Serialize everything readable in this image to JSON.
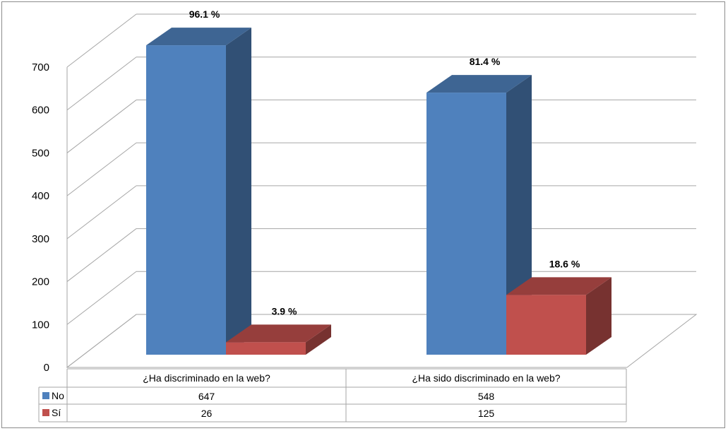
{
  "chart_data": {
    "type": "bar",
    "categories": [
      "¿Ha discriminado en la web?",
      "¿Ha sido discriminado en la web?"
    ],
    "series": [
      {
        "name": "No",
        "values": [
          647,
          548
        ],
        "labels": [
          "96.1 %",
          "81.4 %"
        ],
        "color": "#4f81bd"
      },
      {
        "name": "Sí",
        "values": [
          26,
          125
        ],
        "labels": [
          "3.9 %",
          "18.6 %"
        ],
        "color": "#c0504d"
      }
    ],
    "ylim": [
      0,
      700
    ],
    "yticks": [
      0,
      100,
      200,
      300,
      400,
      500,
      600,
      700
    ],
    "style": "3d",
    "grid": true,
    "legend": "data-table"
  }
}
